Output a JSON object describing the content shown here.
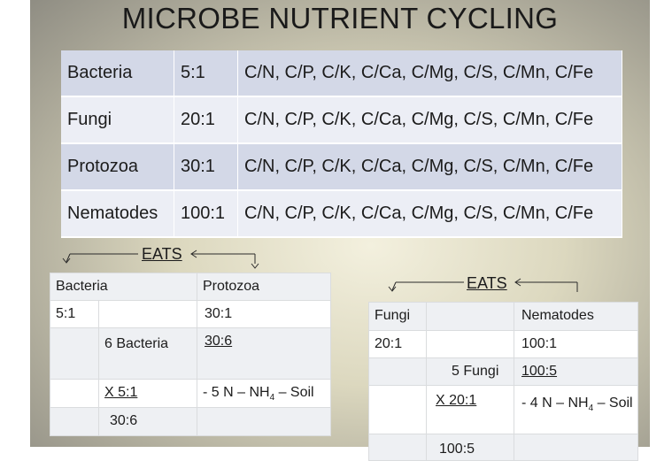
{
  "title": "MICROBE NUTRIENT CYCLING",
  "ratio_list": "C/N, C/P, C/K, C/Ca, C/Mg, C/S, C/Mn, C/Fe",
  "main_rows": [
    {
      "organism": "Bacteria",
      "ratio": "5:1"
    },
    {
      "organism": "Fungi",
      "ratio": "20:1"
    },
    {
      "organism": "Protozoa",
      "ratio": "30:1"
    },
    {
      "organism": "Nematodes",
      "ratio": "100:1"
    }
  ],
  "eats_label": "EATS",
  "left_box": {
    "head_a": "Bacteria",
    "head_b": "Protozoa",
    "r1_a": "5:1",
    "r1_c": "30:1",
    "r2_b": "6 Bacteria",
    "r2_c": "30:6",
    "r3_b": "X  5:1",
    "r3_c_prefix": "- 5 N – NH",
    "r3_c_sub": "4",
    "r3_c_suffix": " – Soil",
    "r4_b": "30:6"
  },
  "right_box": {
    "head_a": "Fungi",
    "head_c": "Nematodes",
    "r1_a": "20:1",
    "r1_c": "100:1",
    "r2_b": "5 Fungi",
    "r2_c": "100:5",
    "r3_b": "X  20:1",
    "r3_c_prefix": " - 4 N – NH",
    "r3_c_sub": "4",
    "r3_c_suffix": " – Soil",
    "r4_b": "100:5"
  }
}
